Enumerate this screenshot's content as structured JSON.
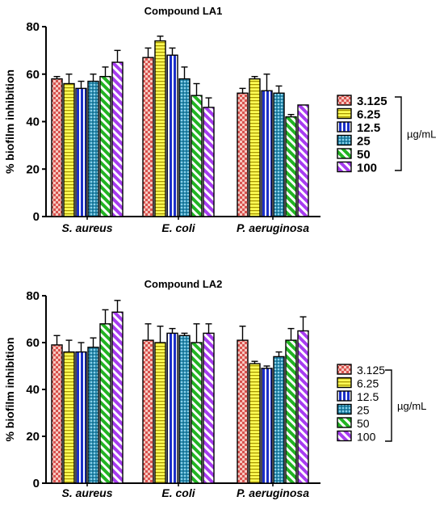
{
  "chart_data": [
    {
      "type": "bar",
      "title": "Compound LA1",
      "ylabel": "% biofilm inhibition",
      "xlabel": "",
      "ylim": [
        0,
        80
      ],
      "yticks": [
        "0",
        "20",
        "40",
        "60",
        "80"
      ],
      "categories": [
        "S. aureus",
        "E. coli",
        "P. aeruginosa"
      ],
      "series": [
        {
          "name": "3.125",
          "values": [
            58,
            67,
            52
          ],
          "errors": [
            1,
            4,
            2
          ],
          "color": "#e8847c",
          "pattern": "check"
        },
        {
          "name": "6.25",
          "values": [
            56,
            74,
            58
          ],
          "errors": [
            4,
            2,
            1
          ],
          "color": "#ffff55",
          "pattern": "hlines"
        },
        {
          "name": "12.5",
          "values": [
            54,
            68,
            53
          ],
          "errors": [
            3,
            3,
            7
          ],
          "color": "#2233cc",
          "pattern": "vlines"
        },
        {
          "name": "25",
          "values": [
            57,
            58,
            52
          ],
          "errors": [
            3,
            5,
            3
          ],
          "color": "#40a8c8",
          "pattern": "dots"
        },
        {
          "name": "50",
          "values": [
            59,
            51,
            42
          ],
          "errors": [
            4,
            5,
            1
          ],
          "color": "#22bb22",
          "pattern": "diag"
        },
        {
          "name": "100",
          "values": [
            65,
            46,
            47
          ],
          "errors": [
            5,
            4,
            0
          ],
          "color": "#aa44ee",
          "pattern": "diag"
        }
      ],
      "legend_position": "right",
      "unit_label": "µg/mL"
    },
    {
      "type": "bar",
      "title": "Compound LA2",
      "ylabel": "% biofilm inhibition",
      "xlabel": "",
      "ylim": [
        0,
        80
      ],
      "yticks": [
        "0",
        "20",
        "40",
        "60",
        "80"
      ],
      "categories": [
        "S. aureus",
        "E. coli",
        "P. aeruginosa"
      ],
      "series": [
        {
          "name": "3.125",
          "values": [
            59,
            61,
            61
          ],
          "errors": [
            4,
            7,
            6
          ],
          "color": "#e8847c",
          "pattern": "check"
        },
        {
          "name": "6.25",
          "values": [
            56,
            60,
            51
          ],
          "errors": [
            5,
            7,
            1
          ],
          "color": "#ffff55",
          "pattern": "hlines"
        },
        {
          "name": "12.5",
          "values": [
            56,
            64,
            49
          ],
          "errors": [
            4,
            2,
            1
          ],
          "color": "#2233cc",
          "pattern": "vlines"
        },
        {
          "name": "25",
          "values": [
            58,
            63,
            54
          ],
          "errors": [
            4,
            1,
            2
          ],
          "color": "#40a8c8",
          "pattern": "dots"
        },
        {
          "name": "50",
          "values": [
            68,
            60,
            61
          ],
          "errors": [
            6,
            8,
            5
          ],
          "color": "#22bb22",
          "pattern": "diag"
        },
        {
          "name": "100",
          "values": [
            73,
            64,
            65
          ],
          "errors": [
            5,
            4,
            6
          ],
          "color": "#aa44ee",
          "pattern": "diag"
        }
      ],
      "legend_position": "right",
      "unit_label": "µg/mL"
    }
  ]
}
